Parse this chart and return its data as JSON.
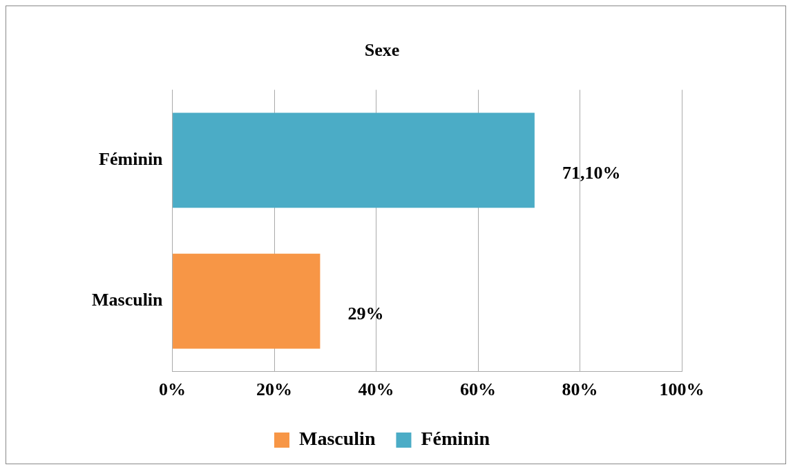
{
  "chart_data": {
    "type": "bar",
    "title": "Sexe",
    "orientation": "horizontal",
    "categories": [
      "Féminin",
      "Masculin"
    ],
    "series": [
      {
        "name": "Masculin",
        "color": "#f79646",
        "values": [
          null,
          29
        ],
        "value_labels": [
          null,
          "29%"
        ]
      },
      {
        "name": "Féminin",
        "color": "#4bacc6",
        "values": [
          71.1,
          null
        ],
        "value_labels": [
          "71,10%",
          null
        ]
      }
    ],
    "xlim": [
      0,
      100
    ],
    "xticks": [
      {
        "value": 0,
        "label": "0%"
      },
      {
        "value": 20,
        "label": "20%"
      },
      {
        "value": 40,
        "label": "40%"
      },
      {
        "value": 60,
        "label": "60%"
      },
      {
        "value": 80,
        "label": "80%"
      },
      {
        "value": 100,
        "label": "100%"
      }
    ],
    "grid": "x",
    "legend": "bottom"
  }
}
